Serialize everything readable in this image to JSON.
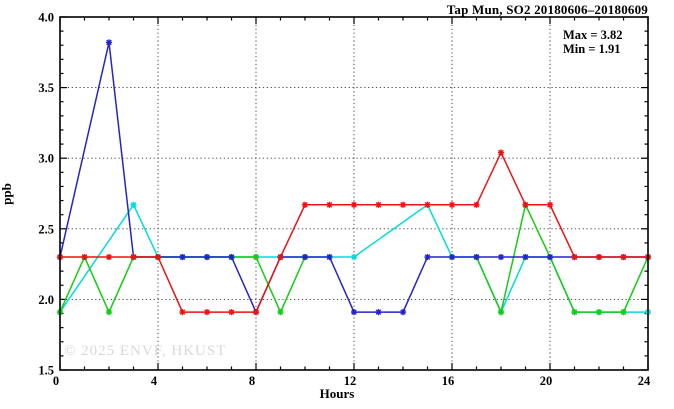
{
  "title": "Tap Mun, SO2 20180606–20180609",
  "annotation": {
    "max_label": "Max = 3.82",
    "min_label": "Min = 1.91"
  },
  "watermark": "© 2025  ENVF, HKUST",
  "chart_data": {
    "type": "line",
    "title": "Tap Mun, SO2 20180606–20180609",
    "xlabel": "Hours",
    "ylabel": "ppb",
    "xlim": [
      0,
      24
    ],
    "ylim": [
      1.5,
      4.0
    ],
    "x_major_ticks": [
      0,
      4,
      8,
      12,
      16,
      20,
      24
    ],
    "x_tick_labels": [
      "0",
      "4",
      "8",
      "12",
      "16",
      "20",
      "24"
    ],
    "x_minor_step": 1,
    "y_major_ticks": [
      1.5,
      2.0,
      2.5,
      3.0,
      3.5,
      4.0
    ],
    "y_tick_labels": [
      "1.5",
      "2.0",
      "2.5",
      "3.0",
      "3.5",
      "4.0"
    ],
    "y_minor_step": 0.1,
    "grid": "dotted-at-major-ticks",
    "legend": "none",
    "stats": {
      "max": 3.82,
      "min": 1.91
    },
    "series": [
      {
        "name": "series-cyan",
        "color": "#00dcdc",
        "segments": [
          [
            [
              0,
              1.91
            ],
            [
              3,
              2.67
            ],
            [
              4,
              2.3
            ],
            [
              5,
              2.3
            ],
            [
              6,
              2.3
            ],
            [
              7,
              2.3
            ],
            [
              8,
              2.3
            ],
            [
              9,
              2.3
            ],
            [
              10,
              2.3
            ],
            [
              11,
              2.3
            ],
            [
              12,
              2.3
            ],
            [
              15,
              2.67
            ],
            [
              16,
              2.3
            ],
            [
              17,
              2.3
            ],
            [
              18,
              1.91
            ],
            [
              19,
              2.3
            ],
            [
              20,
              2.3
            ],
            [
              21,
              1.91
            ],
            [
              22,
              1.91
            ],
            [
              23,
              1.91
            ],
            [
              24,
              1.91
            ]
          ]
        ]
      },
      {
        "name": "series-green",
        "color": "#16cc16",
        "segments": [
          [
            [
              0,
              1.91
            ],
            [
              1,
              2.3
            ],
            [
              2,
              1.91
            ],
            [
              3,
              2.3
            ],
            [
              4,
              2.3
            ],
            [
              5,
              2.3
            ],
            [
              6,
              2.3
            ],
            [
              7,
              2.3
            ],
            [
              8,
              2.3
            ],
            [
              9,
              1.91
            ],
            [
              10,
              2.3
            ]
          ],
          [
            [
              17,
              2.3
            ],
            [
              18,
              1.91
            ],
            [
              19,
              2.67
            ],
            [
              20,
              2.3
            ],
            [
              21,
              1.91
            ],
            [
              22,
              1.91
            ],
            [
              23,
              1.91
            ],
            [
              24,
              2.3
            ]
          ]
        ]
      },
      {
        "name": "series-blue",
        "color": "#2424cc",
        "segments": [
          [
            [
              0,
              2.3
            ],
            [
              2,
              3.82
            ],
            [
              3,
              2.3
            ],
            [
              4,
              2.3
            ],
            [
              5,
              2.3
            ],
            [
              6,
              2.3
            ],
            [
              7,
              2.3
            ],
            [
              8,
              1.91
            ],
            [
              9,
              2.3
            ],
            [
              10,
              2.3
            ],
            [
              11,
              2.3
            ],
            [
              12,
              1.91
            ],
            [
              13,
              1.91
            ],
            [
              14,
              1.91
            ],
            [
              15,
              2.3
            ],
            [
              16,
              2.3
            ],
            [
              17,
              2.3
            ],
            [
              18,
              2.3
            ],
            [
              19,
              2.3
            ],
            [
              20,
              2.3
            ],
            [
              21,
              2.3
            ],
            [
              22,
              2.3
            ],
            [
              23,
              2.3
            ],
            [
              24,
              2.3
            ]
          ]
        ]
      },
      {
        "name": "series-red",
        "color": "#ee1212",
        "segments": [
          [
            [
              0,
              2.3
            ],
            [
              1,
              2.3
            ],
            [
              2,
              2.3
            ],
            [
              3,
              2.3
            ],
            [
              4,
              2.3
            ],
            [
              5,
              1.91
            ],
            [
              6,
              1.91
            ],
            [
              7,
              1.91
            ],
            [
              8,
              1.91
            ],
            [
              9,
              2.3
            ],
            [
              10,
              2.67
            ],
            [
              11,
              2.67
            ],
            [
              12,
              2.67
            ],
            [
              13,
              2.67
            ],
            [
              14,
              2.67
            ],
            [
              15,
              2.67
            ],
            [
              16,
              2.67
            ],
            [
              17,
              2.67
            ],
            [
              18,
              3.04
            ],
            [
              19,
              2.67
            ],
            [
              20,
              2.67
            ],
            [
              21,
              2.3
            ],
            [
              22,
              2.3
            ],
            [
              23,
              2.3
            ],
            [
              24,
              2.3
            ]
          ]
        ]
      }
    ]
  }
}
